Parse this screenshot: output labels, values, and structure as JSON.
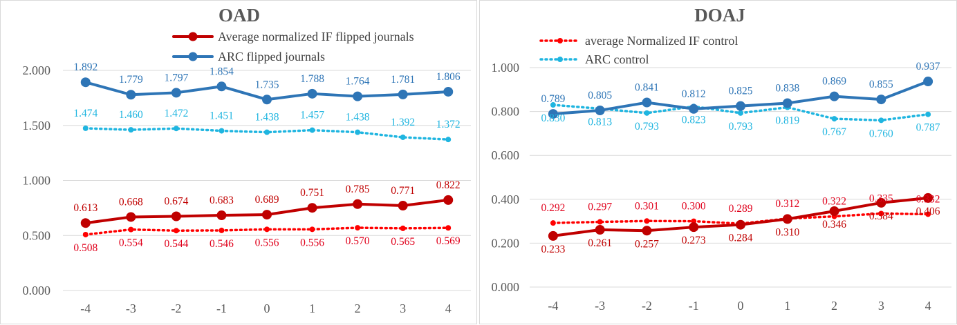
{
  "chart_data": [
    {
      "type": "line",
      "title": "OAD",
      "x": [
        "-4",
        "-3",
        "-2",
        "-1",
        "0",
        "1",
        "2",
        "3",
        "4"
      ],
      "ylim": [
        0,
        2
      ],
      "yticks": [
        "0.000",
        "0.500",
        "1.000",
        "1.500",
        "2.000"
      ],
      "grid": true,
      "legend_position": "top-right",
      "series": [
        {
          "name": "Average normalized IF flipped journals",
          "style": "solid",
          "color": "#c00000",
          "label_position": "above",
          "values": [
            0.613,
            0.668,
            0.674,
            0.683,
            0.689,
            0.751,
            0.785,
            0.771,
            0.822
          ],
          "labels": [
            "0.613",
            "0.668",
            "0.674",
            "0.683",
            "0.689",
            "0.751",
            "0.785",
            "0.771",
            "0.822"
          ]
        },
        {
          "name": "ARC flipped journals",
          "style": "solid",
          "color": "#2e75b6",
          "label_position": "above",
          "values": [
            1.892,
            1.779,
            1.797,
            1.854,
            1.735,
            1.788,
            1.764,
            1.781,
            1.806
          ],
          "labels": [
            "1.892",
            "1.779",
            "1.797",
            "1.854",
            "1.735",
            "1.788",
            "1.764",
            "1.781",
            "1.806"
          ]
        },
        {
          "name": "",
          "style": "dotted",
          "color": "#ff0000",
          "label_position": "below",
          "values": [
            0.508,
            0.554,
            0.544,
            0.546,
            0.556,
            0.556,
            0.57,
            0.565,
            0.569
          ],
          "labels": [
            "0.508",
            "0.554",
            "0.544",
            "0.546",
            "0.556",
            "0.556",
            "0.570",
            "0.565",
            "0.569"
          ]
        },
        {
          "name": "",
          "style": "dotted",
          "color": "#1fb5e0",
          "label_position": "above",
          "values": [
            1.474,
            1.46,
            1.472,
            1.451,
            1.438,
            1.457,
            1.438,
            1.392,
            1.372
          ],
          "labels": [
            "1.474",
            "1.460",
            "1.472",
            "1.451",
            "1.438",
            "1.457",
            "1.438",
            "1.392",
            "1.372"
          ]
        }
      ]
    },
    {
      "type": "line",
      "title": "DOAJ",
      "x": [
        "-4",
        "-3",
        "-2",
        "-1",
        "0",
        "1",
        "2",
        "3",
        "4"
      ],
      "ylim": [
        0,
        1
      ],
      "yticks": [
        "0.000",
        "0.200",
        "0.400",
        "0.600",
        "0.800",
        "1.000"
      ],
      "grid": true,
      "legend_position": "top-right",
      "series": [
        {
          "name": "average Normalized IF control",
          "style": "dotted",
          "color": "#ff0000",
          "label_position": "above",
          "values": [
            0.292,
            0.297,
            0.301,
            0.3,
            0.289,
            0.312,
            0.322,
            0.335,
            0.332
          ],
          "labels": [
            "0.292",
            "0.297",
            "0.301",
            "0.300",
            "0.289",
            "0.312",
            "0.322",
            "0.335",
            "0.332"
          ]
        },
        {
          "name": "ARC control",
          "style": "dotted",
          "color": "#1fb5e0",
          "label_position": "below",
          "values": [
            0.83,
            0.813,
            0.793,
            0.823,
            0.793,
            0.819,
            0.767,
            0.76,
            0.787
          ],
          "labels": [
            "0.830",
            "0.813",
            "0.793",
            "0.823",
            "0.793",
            "0.819",
            "0.767",
            "0.760",
            "0.787"
          ]
        },
        {
          "name": "",
          "style": "solid",
          "color": "#c00000",
          "label_position": "below",
          "values": [
            0.233,
            0.261,
            0.257,
            0.273,
            0.284,
            0.31,
            0.346,
            0.384,
            0.406
          ],
          "labels": [
            "0.233",
            "0.261",
            "0.257",
            "0.273",
            "0.284",
            "0.310",
            "0.346",
            "0.384",
            "0.406"
          ]
        },
        {
          "name": "",
          "style": "solid",
          "color": "#2e75b6",
          "label_position": "above",
          "values": [
            0.789,
            0.805,
            0.841,
            0.812,
            0.825,
            0.838,
            0.869,
            0.855,
            0.937
          ],
          "labels": [
            "0.789",
            "0.805",
            "0.841",
            "0.812",
            "0.825",
            "0.838",
            "0.869",
            "0.855",
            "0.937"
          ]
        }
      ]
    }
  ]
}
